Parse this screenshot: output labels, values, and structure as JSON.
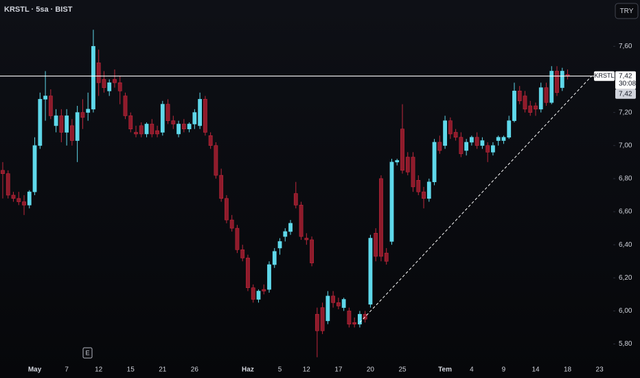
{
  "chart_data": {
    "type": "candlestick",
    "title": "KRSTL · 5sa · BIST",
    "currency": "TRY",
    "event_marker": "E",
    "categories": [
      null,
      null,
      null,
      null,
      null,
      null,
      "May",
      null,
      null,
      null,
      null,
      null,
      "7",
      null,
      null,
      null,
      null,
      null,
      "12",
      null,
      null,
      null,
      null,
      null,
      "15",
      null,
      null,
      null,
      null,
      null,
      "21",
      null,
      null,
      null,
      null,
      null,
      "26",
      null,
      null,
      null,
      null,
      null,
      null,
      null,
      null,
      null,
      "Haz",
      null,
      null,
      null,
      null,
      null,
      "5",
      null,
      null,
      null,
      null,
      "12",
      null,
      null,
      null,
      null,
      null,
      "17",
      null,
      null,
      null,
      null,
      null,
      "20",
      null,
      null,
      null,
      null,
      null,
      "25",
      null,
      null,
      null,
      null,
      null,
      null,
      null,
      "Tem",
      null,
      null,
      null,
      null,
      "4",
      null,
      null,
      null,
      null,
      null,
      "9",
      null,
      null,
      null,
      null,
      null,
      "14",
      null,
      null,
      null,
      null,
      null,
      "18",
      null,
      null,
      null,
      null,
      null,
      "23"
    ],
    "series": [
      {
        "name": "KRSTL",
        "up_color": "#5fd8ea",
        "down_color": "#8e1b2b",
        "down_border": "#c0283c",
        "open": [
          6.85,
          6.83,
          6.7,
          6.68,
          6.66,
          6.64,
          6.72,
          7.0,
          7.28,
          7.3,
          7.12,
          7.18,
          7.08,
          7.12,
          7.03,
          7.2,
          7.2,
          7.22,
          7.5,
          7.4,
          7.33,
          7.4,
          7.38,
          7.3,
          7.18,
          7.08,
          7.12,
          7.07,
          7.13,
          7.09,
          7.08,
          7.25,
          7.15,
          7.07,
          7.13,
          7.1,
          7.13,
          7.12,
          7.28,
          7.06,
          7.0,
          6.82,
          6.68,
          6.55,
          6.5,
          6.37,
          6.32,
          6.14,
          6.07,
          6.13,
          6.13,
          6.28,
          6.38,
          6.45,
          6.48,
          6.71,
          6.64,
          6.44,
          6.43,
          5.98,
          6.02,
          5.94,
          6.09,
          6.05,
          6.02,
          6.0,
          5.93,
          5.92,
          5.98,
          6.04,
          6.47,
          6.8,
          6.35,
          6.42,
          6.9,
          7.1,
          6.93,
          6.93,
          6.79,
          6.72,
          6.68,
          6.78,
          7.02,
          7.0,
          7.15,
          7.08,
          7.05,
          6.97,
          7.02,
          7.05,
          7.0,
          7.0,
          6.96,
          7.03,
          7.03,
          7.05,
          7.15,
          7.33,
          7.3,
          7.24,
          7.24,
          7.22,
          7.35,
          7.26,
          7.45,
          7.35,
          7.43,
          null,
          null,
          null,
          null,
          null,
          null
        ],
        "high": [
          6.9,
          6.85,
          6.72,
          6.72,
          6.7,
          6.73,
          7.05,
          7.32,
          7.45,
          7.34,
          7.22,
          7.22,
          7.22,
          7.16,
          7.24,
          7.28,
          7.32,
          7.7,
          7.58,
          7.45,
          7.4,
          7.46,
          7.42,
          7.32,
          7.2,
          7.12,
          7.14,
          7.14,
          7.16,
          7.12,
          7.27,
          7.28,
          7.18,
          7.15,
          7.16,
          7.14,
          7.22,
          7.32,
          7.3,
          7.08,
          7.02,
          6.86,
          6.7,
          6.58,
          6.52,
          6.4,
          6.34,
          6.16,
          6.13,
          6.16,
          6.3,
          6.38,
          6.44,
          6.5,
          6.55,
          6.78,
          6.66,
          6.47,
          6.45,
          6.02,
          6.05,
          6.12,
          6.12,
          6.08,
          6.08,
          6.02,
          5.96,
          6.0,
          6.0,
          6.46,
          6.5,
          6.82,
          6.38,
          6.92,
          6.92,
          7.25,
          6.96,
          6.96,
          6.82,
          6.75,
          6.8,
          7.04,
          7.06,
          7.18,
          7.17,
          7.1,
          7.08,
          7.04,
          7.06,
          7.08,
          7.05,
          7.02,
          7.02,
          7.06,
          7.06,
          7.18,
          7.38,
          7.36,
          7.33,
          7.27,
          7.26,
          7.38,
          7.38,
          7.48,
          7.48,
          7.47,
          7.46,
          null,
          null,
          null,
          null,
          null,
          null
        ],
        "low": [
          6.68,
          6.68,
          6.66,
          6.64,
          6.58,
          6.62,
          6.7,
          6.98,
          7.15,
          7.16,
          7.08,
          7.02,
          7.0,
          7.0,
          6.9,
          7.1,
          7.15,
          7.2,
          7.3,
          7.32,
          7.3,
          7.35,
          7.25,
          7.16,
          7.08,
          7.05,
          7.05,
          7.05,
          7.05,
          7.05,
          7.06,
          7.13,
          7.1,
          7.05,
          7.08,
          7.08,
          7.1,
          7.1,
          7.06,
          6.98,
          6.8,
          6.66,
          6.53,
          6.48,
          6.35,
          6.3,
          6.12,
          6.05,
          6.05,
          6.1,
          6.11,
          6.26,
          6.34,
          6.42,
          6.46,
          6.62,
          6.43,
          6.4,
          6.27,
          5.72,
          5.86,
          5.92,
          6.02,
          6.01,
          6.0,
          5.9,
          5.9,
          5.9,
          5.93,
          6.02,
          6.3,
          6.3,
          6.28,
          6.4,
          6.88,
          6.83,
          6.82,
          6.72,
          6.7,
          6.62,
          6.66,
          6.76,
          6.95,
          6.98,
          7.04,
          7.03,
          6.93,
          6.94,
          7.0,
          6.98,
          6.98,
          6.9,
          6.94,
          7.0,
          7.01,
          7.04,
          7.14,
          7.25,
          7.2,
          7.18,
          7.18,
          7.2,
          7.24,
          7.25,
          7.3,
          7.33,
          7.4,
          null,
          null,
          null,
          null,
          null,
          null
        ],
        "close": [
          6.83,
          6.7,
          6.68,
          6.66,
          6.64,
          6.72,
          7.0,
          7.28,
          7.3,
          7.18,
          7.18,
          7.08,
          7.18,
          7.03,
          7.2,
          7.17,
          7.22,
          7.6,
          7.38,
          7.35,
          7.38,
          7.38,
          7.33,
          7.18,
          7.1,
          7.07,
          7.07,
          7.13,
          7.07,
          7.07,
          7.25,
          7.15,
          7.13,
          7.13,
          7.1,
          7.13,
          7.2,
          7.28,
          7.08,
          7.0,
          6.82,
          6.68,
          6.55,
          6.5,
          6.37,
          6.32,
          6.14,
          6.07,
          6.12,
          6.12,
          6.28,
          6.36,
          6.42,
          6.48,
          6.53,
          6.64,
          6.45,
          6.43,
          6.29,
          5.88,
          5.88,
          6.09,
          6.05,
          6.03,
          6.07,
          5.92,
          5.92,
          5.98,
          5.95,
          6.44,
          6.33,
          6.33,
          6.3,
          6.9,
          6.91,
          6.85,
          6.84,
          6.75,
          6.72,
          6.68,
          6.78,
          7.02,
          6.97,
          7.15,
          7.07,
          7.05,
          6.95,
          7.02,
          7.05,
          7.0,
          7.03,
          6.96,
          7.0,
          7.05,
          7.05,
          7.15,
          7.33,
          7.27,
          7.22,
          7.2,
          7.22,
          7.35,
          7.26,
          7.45,
          7.32,
          7.45,
          7.42,
          null,
          null,
          null,
          null,
          null,
          null
        ]
      }
    ],
    "ylim": [
      5.69,
      7.88
    ],
    "yticks": [
      {
        "value": 5.8,
        "label": "5,80"
      },
      {
        "value": 6.0,
        "label": "6,00"
      },
      {
        "value": 6.2,
        "label": "6,20"
      },
      {
        "value": 6.4,
        "label": "6,40"
      },
      {
        "value": 6.6,
        "label": "6,60"
      },
      {
        "value": 6.8,
        "label": "6,80"
      },
      {
        "value": 7.0,
        "label": "7,00"
      },
      {
        "value": 7.2,
        "label": "7,20"
      },
      {
        "value": 7.4,
        "label": "7,40"
      },
      {
        "value": 7.6,
        "label": "7,60"
      }
    ],
    "last_price": {
      "value": 7.42,
      "label": "7,42"
    },
    "countdown": "30:08",
    "previous_close": {
      "value": 7.42,
      "label": "7,42"
    },
    "trendline": {
      "from": [
        67,
        5.93
      ],
      "to": [
        110.5,
        7.42
      ]
    }
  }
}
